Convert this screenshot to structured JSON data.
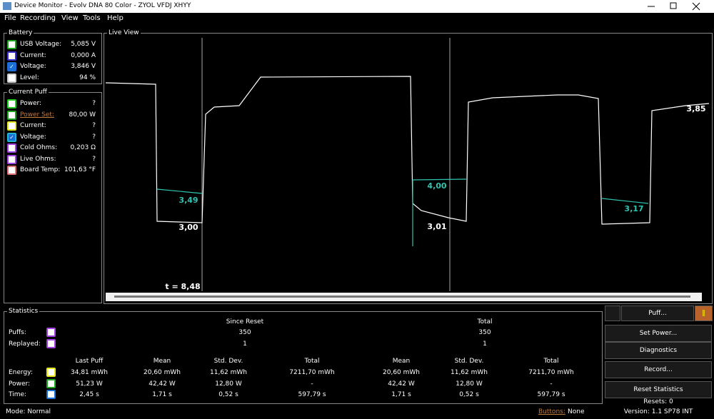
{
  "window": {
    "title": "Device Monitor - Evolv DNA 80 Color - ZYOL VFDJ XHYY"
  },
  "menu": [
    "File",
    "Recording",
    "View",
    "Tools",
    "Help"
  ],
  "battery": {
    "title": "Battery",
    "rows": [
      {
        "label": "USB Voltage:",
        "value": "5,085 V"
      },
      {
        "label": "Current:",
        "value": "0,000 A"
      },
      {
        "label": "Voltage:",
        "value": "3,846 V"
      },
      {
        "label": "Level:",
        "value": "94 %"
      }
    ]
  },
  "current_puff": {
    "title": "Current Puff",
    "rows": [
      {
        "label": "Power:",
        "value": "?"
      },
      {
        "label": "Power Set:",
        "value": "80,00 W"
      },
      {
        "label": "Current:",
        "value": "?"
      },
      {
        "label": "Voltage:",
        "value": "?"
      },
      {
        "label": "Cold Ohms:",
        "value": "0,203 Ω"
      },
      {
        "label": "Live Ohms:",
        "value": "?"
      },
      {
        "label": "Board Temp:",
        "value": "101,63 °F"
      }
    ]
  },
  "live_view": {
    "title": "Live View",
    "labels": [
      "3,49",
      "3,00",
      "4,00",
      "3,01",
      "3,17",
      "3,85",
      "t = 8,48"
    ]
  },
  "statistics": {
    "title": "Statistics",
    "groups": [
      "Since Reset",
      "Total"
    ],
    "count_rows": [
      {
        "label": "Puffs:",
        "values": [
          "350",
          "350"
        ]
      },
      {
        "label": "Replayed:",
        "values": [
          "1",
          "1"
        ]
      }
    ],
    "columns": [
      "Last Puff",
      "Mean",
      "Std. Dev.",
      "Total",
      "Mean",
      "Std. Dev.",
      "Total"
    ],
    "rows": [
      {
        "label": "Energy:",
        "values": [
          "34,81 mWh",
          "20,60 mWh",
          "11,62 mWh",
          "7211,70 mWh",
          "20,60 mWh",
          "11,62 mWh",
          "7211,70 mWh"
        ]
      },
      {
        "label": "Power:",
        "values": [
          "51,23 W",
          "42,42 W",
          "12,80 W",
          "-",
          "42,42 W",
          "12,80 W",
          "-"
        ]
      },
      {
        "label": "Time:",
        "values": [
          "2,45 s",
          "1,71 s",
          "0,52 s",
          "597,79 s",
          "1,71 s",
          "0,52 s",
          "597,79 s"
        ]
      }
    ]
  },
  "buttons": {
    "puff": "Puff...",
    "set_power": "Set Power...",
    "diagnostics": "Diagnostics",
    "record": "Record...",
    "reset": "Reset Statistics"
  },
  "resets": "Resets: 0",
  "version": "Version: 1.1 SP78 INT",
  "status": {
    "mode": "Mode: Normal",
    "buttons_label": "Buttons:",
    "buttons_value": "None"
  }
}
